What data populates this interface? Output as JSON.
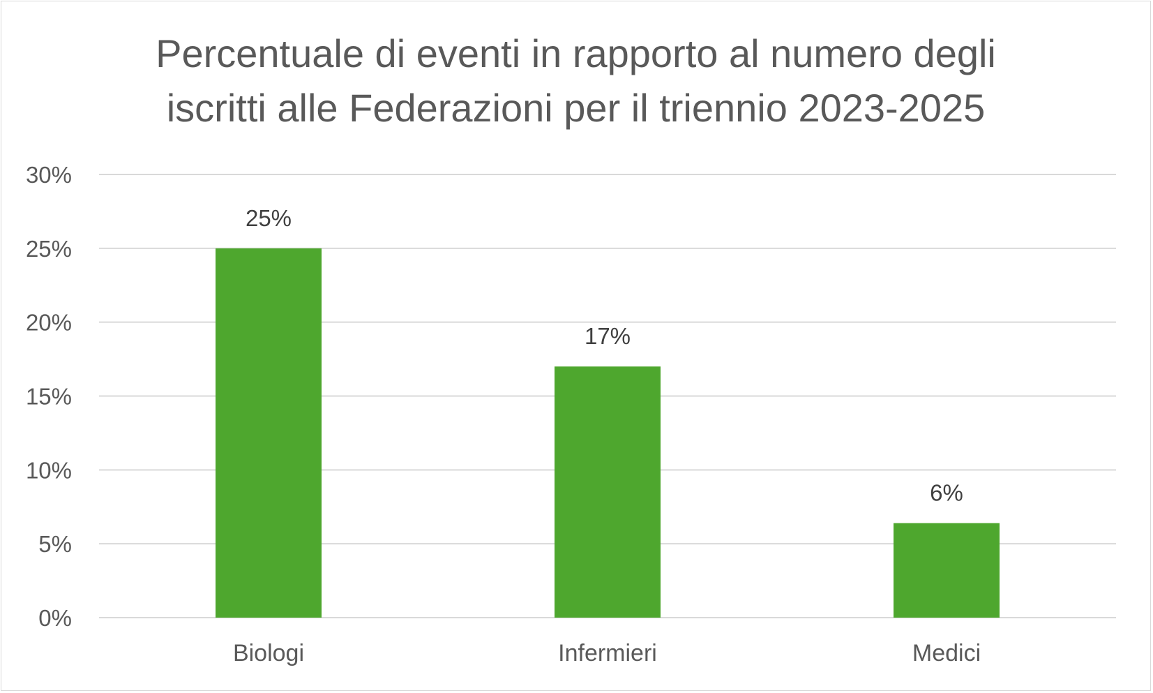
{
  "chart_data": {
    "type": "bar",
    "title": "Percentuale di eventi in rapporto al numero degli\niscritti alle Federazioni per il triennio 2023-2025",
    "categories": [
      "Biologi",
      "Infermieri",
      "Medici"
    ],
    "values": [
      25,
      17,
      6.4
    ],
    "data_labels": [
      "25%",
      "17%",
      "6%"
    ],
    "ylim": [
      0,
      30
    ],
    "yticks": [
      0,
      5,
      10,
      15,
      20,
      25,
      30
    ],
    "ytick_labels": [
      "0%",
      "5%",
      "10%",
      "15%",
      "20%",
      "25%",
      "30%"
    ],
    "grid": true,
    "legend": "none",
    "bar_color": "#4ea72e",
    "grid_color": "#d9d9d9",
    "text_color": "#595959"
  }
}
